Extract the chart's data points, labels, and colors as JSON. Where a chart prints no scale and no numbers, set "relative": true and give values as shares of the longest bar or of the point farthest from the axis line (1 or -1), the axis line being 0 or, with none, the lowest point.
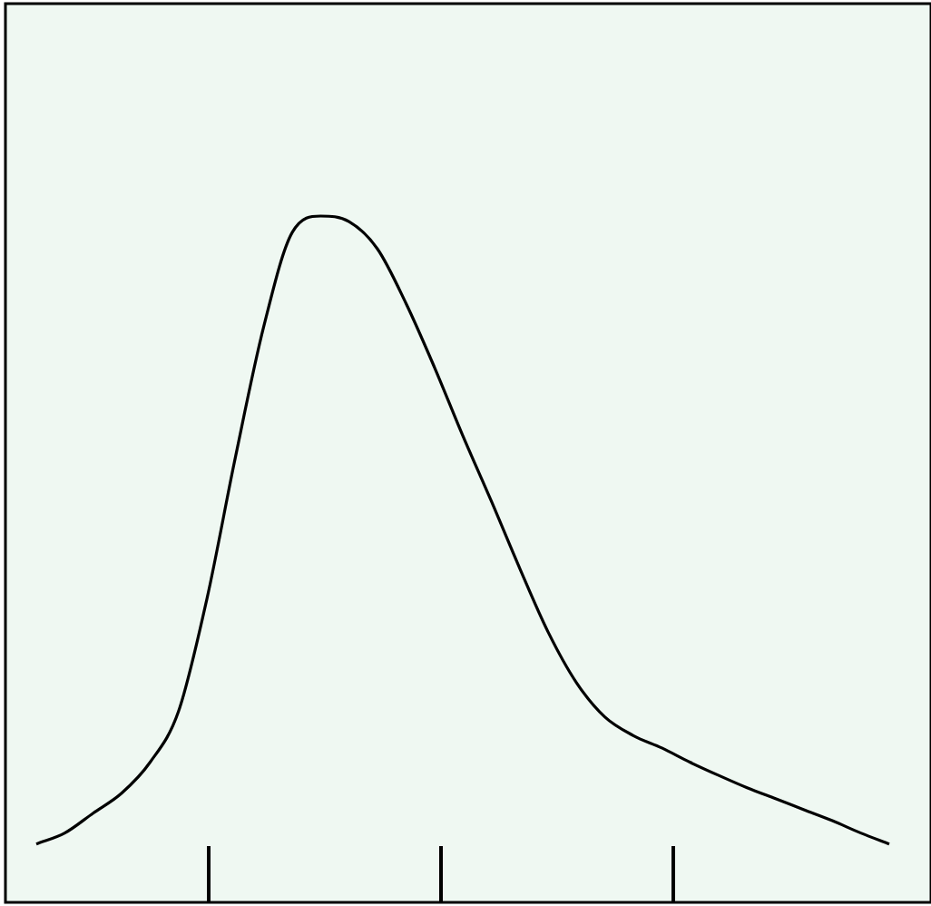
{
  "chart_data": {
    "type": "line",
    "relative": true,
    "categories": [
      null,
      null,
      null,
      null,
      null,
      null,
      null,
      null,
      null,
      null,
      null,
      null,
      null,
      null,
      null,
      null,
      null,
      null,
      null,
      null,
      null,
      null,
      null,
      null,
      null,
      null,
      null,
      null,
      null,
      null,
      null
    ],
    "series": [
      {
        "color": "#000000",
        "values": [
          0.085,
          0.101,
          0.13,
          0.159,
          0.204,
          0.278,
          0.442,
          0.648,
          0.839,
          0.976,
          1,
          0.992,
          0.952,
          0.873,
          0.78,
          0.68,
          0.585,
          0.487,
          0.394,
          0.32,
          0.27,
          0.243,
          0.225,
          0.204,
          0.185,
          0.167,
          0.151,
          0.135,
          0.119,
          0.101,
          0.085
        ]
      }
    ],
    "legend": false,
    "marker": "none",
    "line_style": "solid"
  }
}
